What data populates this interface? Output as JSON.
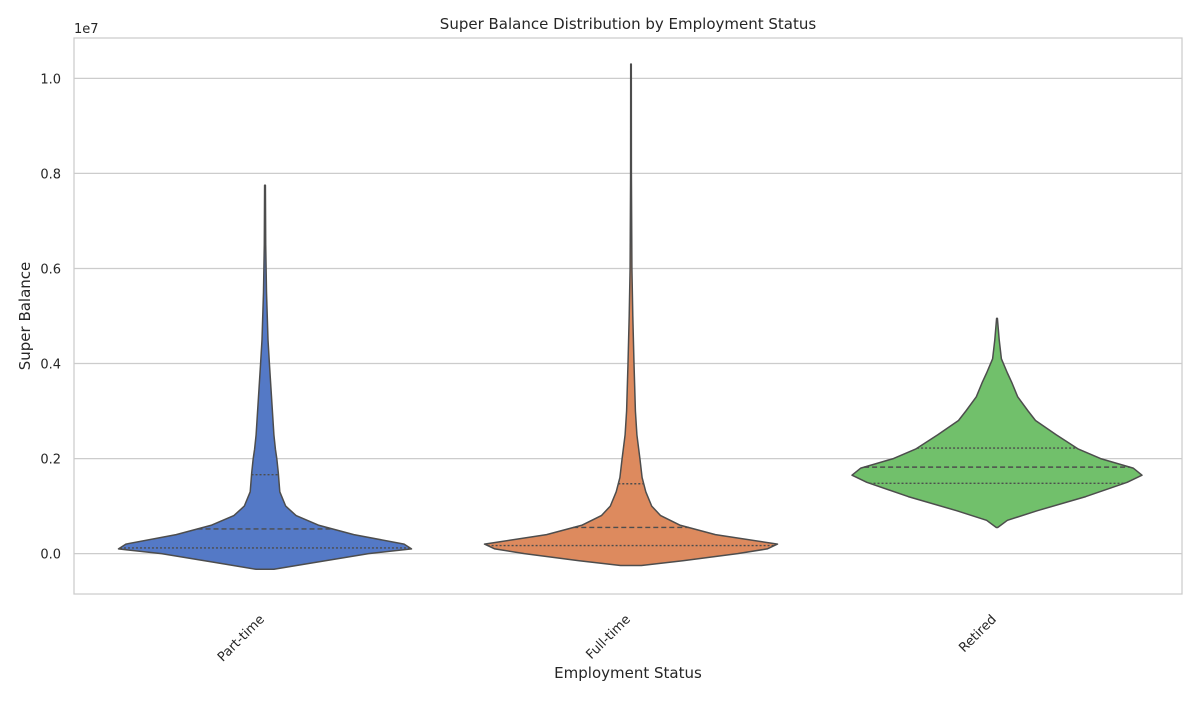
{
  "chart_data": {
    "type": "violin",
    "title": "Super Balance Distribution by Employment Status",
    "xlabel": "Employment Status",
    "ylabel": "Super Balance",
    "y_scale_label": "1e7",
    "y_unit_multiplier": 10000000,
    "ylim": [
      -0.085,
      1.085
    ],
    "yticks": [
      0.0,
      0.2,
      0.4,
      0.6,
      0.8,
      1.0
    ],
    "ytick_labels": [
      "0.0",
      "0.2",
      "0.4",
      "0.6",
      "0.8",
      "1.0"
    ],
    "grid": "horizontal",
    "categories": [
      "Part-time",
      "Full-time",
      "Retired"
    ],
    "colors": [
      "#5479c6",
      "#dd8a5e",
      "#71c06b"
    ],
    "outline_color": "#4d4d4d",
    "series": [
      {
        "category": "Part-time",
        "min": -0.033,
        "max": 0.775,
        "quartiles": [
          0.012,
          0.052,
          0.166
        ],
        "density_profile": [
          [
            -0.033,
            0.06
          ],
          [
            -0.02,
            0.31
          ],
          [
            0,
            0.7
          ],
          [
            0.01,
            0.99
          ],
          [
            0.02,
            0.94
          ],
          [
            0.04,
            0.6
          ],
          [
            0.06,
            0.36
          ],
          [
            0.08,
            0.21
          ],
          [
            0.1,
            0.14
          ],
          [
            0.13,
            0.1
          ],
          [
            0.17,
            0.09
          ],
          [
            0.2,
            0.08
          ],
          [
            0.22,
            0.07
          ],
          [
            0.25,
            0.06
          ],
          [
            0.3,
            0.05
          ],
          [
            0.35,
            0.04
          ],
          [
            0.4,
            0.03
          ],
          [
            0.45,
            0.02
          ],
          [
            0.55,
            0.01
          ],
          [
            0.65,
            0.005
          ],
          [
            0.775,
            0.003
          ]
        ]
      },
      {
        "category": "Full-time",
        "min": -0.025,
        "max": 1.03,
        "quartiles": [
          0.017,
          0.055,
          0.147
        ],
        "density_profile": [
          [
            -0.025,
            0.07
          ],
          [
            -0.015,
            0.35
          ],
          [
            0,
            0.72
          ],
          [
            0.01,
            0.92
          ],
          [
            0.02,
            0.99
          ],
          [
            0.04,
            0.57
          ],
          [
            0.06,
            0.33
          ],
          [
            0.08,
            0.2
          ],
          [
            0.1,
            0.14
          ],
          [
            0.13,
            0.1
          ],
          [
            0.16,
            0.075
          ],
          [
            0.2,
            0.06
          ],
          [
            0.25,
            0.04
          ],
          [
            0.3,
            0.03
          ],
          [
            0.4,
            0.02
          ],
          [
            0.5,
            0.012
          ],
          [
            0.6,
            0.006
          ],
          [
            0.8,
            0.003
          ],
          [
            1.03,
            0.002
          ]
        ]
      },
      {
        "category": "Retired",
        "min": 0.055,
        "max": 0.495,
        "quartiles": [
          0.148,
          0.182,
          0.222
        ],
        "density_profile": [
          [
            0.055,
            0.005
          ],
          [
            0.07,
            0.07
          ],
          [
            0.09,
            0.27
          ],
          [
            0.12,
            0.6
          ],
          [
            0.15,
            0.88
          ],
          [
            0.165,
            0.98
          ],
          [
            0.18,
            0.92
          ],
          [
            0.2,
            0.7
          ],
          [
            0.22,
            0.55
          ],
          [
            0.25,
            0.4
          ],
          [
            0.28,
            0.26
          ],
          [
            0.3,
            0.21
          ],
          [
            0.33,
            0.14
          ],
          [
            0.36,
            0.1
          ],
          [
            0.38,
            0.07
          ],
          [
            0.41,
            0.03
          ],
          [
            0.45,
            0.015
          ],
          [
            0.495,
            0.003
          ]
        ]
      }
    ]
  }
}
